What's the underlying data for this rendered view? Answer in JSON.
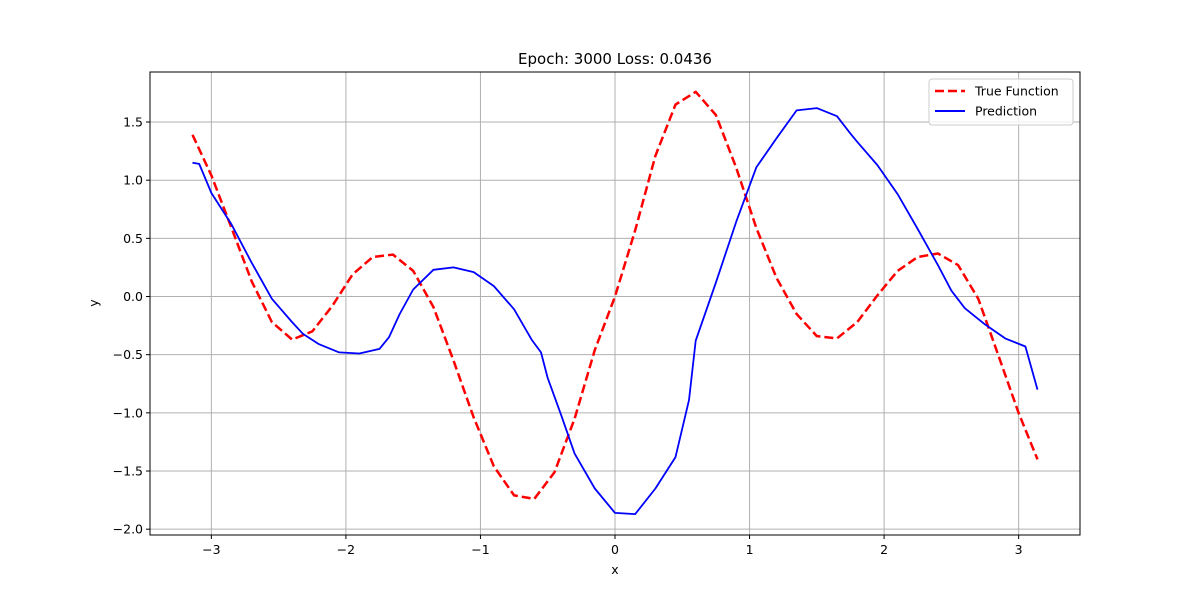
{
  "chart_data": {
    "type": "line",
    "title": "Epoch: 3000  Loss: 0.0436",
    "xlabel": "x",
    "ylabel": "y",
    "xlim": [
      -3.456,
      3.456
    ],
    "ylim": [
      -2.05,
      1.93
    ],
    "xticks": [
      -3,
      -2,
      -1,
      0,
      1,
      2,
      3
    ],
    "xtick_labels": [
      "−3",
      "−2",
      "−1",
      "0",
      "1",
      "2",
      "3"
    ],
    "yticks": [
      -2.0,
      -1.5,
      -1.0,
      -0.5,
      0.0,
      0.5,
      1.0,
      1.5
    ],
    "ytick_labels": [
      "−2.0",
      "−1.5",
      "−1.0",
      "−0.5",
      "0.0",
      "0.5",
      "1.0",
      "1.5"
    ],
    "grid": true,
    "legend_position": "top-right",
    "series": [
      {
        "name": "True Function",
        "color": "#ff0000",
        "style": "dashed",
        "x": [
          -3.14,
          -3.0,
          -2.85,
          -2.7,
          -2.55,
          -2.4,
          -2.25,
          -2.1,
          -1.95,
          -1.8,
          -1.65,
          -1.5,
          -1.35,
          -1.2,
          -1.05,
          -0.9,
          -0.75,
          -0.6,
          -0.45,
          -0.3,
          -0.15,
          0.0,
          0.15,
          0.3,
          0.45,
          0.6,
          0.75,
          0.9,
          1.05,
          1.2,
          1.35,
          1.5,
          1.65,
          1.8,
          1.95,
          2.1,
          2.25,
          2.4,
          2.55,
          2.7,
          2.85,
          3.0,
          3.14
        ],
        "y": [
          1.39,
          1.04,
          0.59,
          0.13,
          -0.22,
          -0.37,
          -0.3,
          -0.08,
          0.19,
          0.34,
          0.36,
          0.22,
          -0.09,
          -0.55,
          -1.04,
          -1.46,
          -1.71,
          -1.74,
          -1.51,
          -1.05,
          -0.46,
          0.0,
          0.57,
          1.21,
          1.65,
          1.76,
          1.56,
          1.11,
          0.59,
          0.16,
          -0.15,
          -0.34,
          -0.36,
          -0.22,
          0.01,
          0.22,
          0.34,
          0.37,
          0.27,
          -0.02,
          -0.51,
          -1.0,
          -1.4
        ]
      },
      {
        "name": "Prediction",
        "color": "#0000ff",
        "style": "solid",
        "x": [
          -3.14,
          -3.09,
          -3.0,
          -2.85,
          -2.7,
          -2.55,
          -2.4,
          -2.32,
          -2.2,
          -2.05,
          -1.9,
          -1.75,
          -1.68,
          -1.6,
          -1.5,
          -1.35,
          -1.2,
          -1.05,
          -0.9,
          -0.75,
          -0.62,
          -0.55,
          -0.5,
          -0.4,
          -0.3,
          -0.15,
          0.0,
          0.15,
          0.3,
          0.45,
          0.55,
          0.6,
          0.75,
          0.9,
          1.05,
          1.2,
          1.35,
          1.5,
          1.65,
          1.75,
          1.8,
          1.95,
          2.1,
          2.25,
          2.4,
          2.5,
          2.6,
          2.75,
          2.9,
          3.05,
          3.14
        ],
        "y": [
          1.15,
          1.14,
          0.89,
          0.62,
          0.29,
          -0.02,
          -0.22,
          -0.32,
          -0.41,
          -0.48,
          -0.49,
          -0.45,
          -0.35,
          -0.15,
          0.06,
          0.23,
          0.25,
          0.21,
          0.09,
          -0.11,
          -0.37,
          -0.48,
          -0.7,
          -1.02,
          -1.35,
          -1.65,
          -1.86,
          -1.87,
          -1.65,
          -1.38,
          -0.89,
          -0.38,
          0.12,
          0.64,
          1.11,
          1.36,
          1.6,
          1.62,
          1.55,
          1.4,
          1.33,
          1.13,
          0.88,
          0.58,
          0.27,
          0.05,
          -0.1,
          -0.24,
          -0.36,
          -0.43,
          -0.8
        ]
      }
    ]
  }
}
